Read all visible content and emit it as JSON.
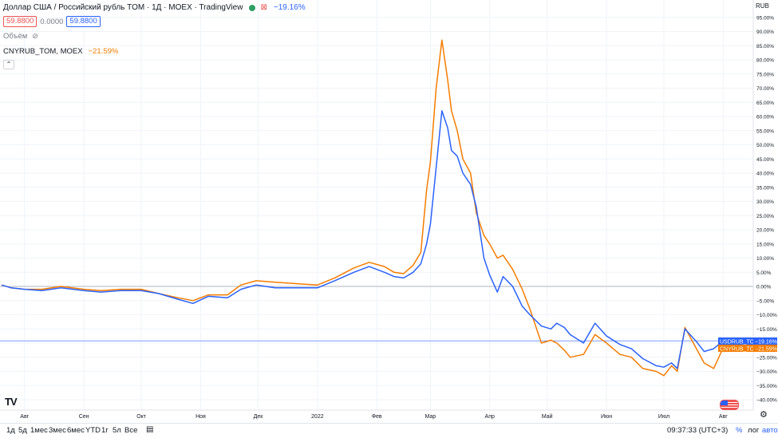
{
  "header": {
    "title": "Доллар США / Российский рубль TOM · 1Д · MOEX · TradingView",
    "change_main": "−19.16%",
    "price_bid": "59.8800",
    "spread": "0.0000",
    "price_ask": "59.8800",
    "volume_label": "Объём",
    "compare_label": "CNYRUB_TOM, MOEX",
    "compare_change": "−21.59%",
    "collapse_icon": "chevron-up-icon"
  },
  "scale": {
    "currency": "RUB",
    "ticks": [
      "95.00%",
      "90.00%",
      "85.00%",
      "80.00%",
      "75.00%",
      "70.00%",
      "65.00%",
      "60.00%",
      "55.00%",
      "50.00%",
      "45.00%",
      "40.00%",
      "35.00%",
      "30.00%",
      "25.00%",
      "20.00%",
      "15.00%",
      "10.00%",
      "5.00%",
      "0.00%",
      "−5.00%",
      "−10.00%",
      "−15.00%",
      "−20.00%",
      "−25.00%",
      "−30.00%",
      "−35.00%",
      "−40.00%"
    ],
    "tick_values": [
      95,
      90,
      85,
      80,
      75,
      70,
      65,
      60,
      55,
      50,
      45,
      40,
      35,
      30,
      25,
      20,
      15,
      10,
      5,
      0,
      -5,
      -10,
      -15,
      -20,
      -25,
      -30,
      -35,
      -40
    ]
  },
  "time_axis": {
    "labels": [
      "Авг",
      "Сен",
      "Окт",
      "Ноя",
      "Дек",
      "2022",
      "Фев",
      "Мар",
      "Апр",
      "Май",
      "Июн",
      "Июл",
      "Авг"
    ],
    "label_dates": [
      "2021-08-01",
      "2021-09-01",
      "2021-10-01",
      "2021-11-01",
      "2021-12-01",
      "2022-01-01",
      "2022-02-01",
      "2022-03-01",
      "2022-04-01",
      "2022-05-01",
      "2022-06-01",
      "2022-07-01",
      "2022-08-01"
    ]
  },
  "markers": {
    "usd_label": "USDRUB_TOM",
    "usd_value": "−19.16%",
    "cny_label": "CNYRUB_TOM",
    "cny_value": "−21.59%"
  },
  "bottom_bar": {
    "timeframes": [
      "1д",
      "5д",
      "1мес",
      "3мес",
      "6мес",
      "YTD",
      "1г",
      "5л",
      "Все"
    ],
    "date_range_icon": "calendar-icon",
    "clock": "09:37:33 (UTC+3)",
    "percent": "%",
    "log": "лог",
    "auto": "авто",
    "settings_icon": "gear-icon"
  },
  "colors": {
    "usd": "#2962ff",
    "cny": "#f57c00",
    "grid": "#f0f3fa",
    "zero_line": "#b2b5be",
    "last_line": "#2962ff"
  },
  "chart_data": {
    "type": "line",
    "x_unit": "date",
    "y_unit": "percent",
    "ylim": [
      -42,
      97
    ],
    "grid": true,
    "legend": "top-left",
    "series": [
      {
        "name": "USDRUB_TOM",
        "x": [
          "2021-07-20",
          "2021-07-25",
          "2021-08-01",
          "2021-08-10",
          "2021-08-20",
          "2021-09-01",
          "2021-09-10",
          "2021-09-20",
          "2021-10-01",
          "2021-10-10",
          "2021-10-20",
          "2021-10-28",
          "2021-11-05",
          "2021-11-15",
          "2021-11-22",
          "2021-11-30",
          "2021-12-10",
          "2021-12-20",
          "2022-01-01",
          "2022-01-10",
          "2022-01-20",
          "2022-01-28",
          "2022-02-05",
          "2022-02-10",
          "2022-02-15",
          "2022-02-20",
          "2022-02-24",
          "2022-02-27",
          "2022-03-01",
          "2022-03-04",
          "2022-03-07",
          "2022-03-10",
          "2022-03-12",
          "2022-03-15",
          "2022-03-18",
          "2022-03-22",
          "2022-03-25",
          "2022-03-29",
          "2022-04-01",
          "2022-04-05",
          "2022-04-08",
          "2022-04-13",
          "2022-04-18",
          "2022-04-22",
          "2022-04-28",
          "2022-05-03",
          "2022-05-06",
          "2022-05-10",
          "2022-05-13",
          "2022-05-20",
          "2022-05-26",
          "2022-06-01",
          "2022-06-08",
          "2022-06-14",
          "2022-06-20",
          "2022-06-27",
          "2022-07-01",
          "2022-07-05",
          "2022-07-08",
          "2022-07-12",
          "2022-07-18",
          "2022-07-22",
          "2022-07-27",
          "2022-08-01"
        ],
        "values": [
          0.5,
          -0.5,
          -1.0,
          -1.5,
          -0.5,
          -1.5,
          -2.0,
          -1.5,
          -1.5,
          -2.5,
          -4.5,
          -6.0,
          -3.5,
          -4.0,
          -1.0,
          0.5,
          -0.5,
          -0.5,
          -0.5,
          2.0,
          5.0,
          7.0,
          5.0,
          3.5,
          3.0,
          5.0,
          8.0,
          15.0,
          22.0,
          42.0,
          62.0,
          56.0,
          48.0,
          46.0,
          40.0,
          36.0,
          28.0,
          10.0,
          4.0,
          -2.0,
          3.5,
          0.0,
          -7.0,
          -10.0,
          -14.0,
          -15.0,
          -13.0,
          -14.5,
          -17.0,
          -20.0,
          -13.0,
          -17.5,
          -20.5,
          -22.0,
          -25.5,
          -28.0,
          -28.5,
          -27.0,
          -29.0,
          -15.0,
          -19.5,
          -23.0,
          -22.0,
          -19.2
        ]
      },
      {
        "name": "CNYRUB_TOM",
        "x": [
          "2021-07-20",
          "2021-07-25",
          "2021-08-01",
          "2021-08-10",
          "2021-08-20",
          "2021-09-01",
          "2021-09-10",
          "2021-09-20",
          "2021-10-01",
          "2021-10-10",
          "2021-10-20",
          "2021-10-28",
          "2021-11-05",
          "2021-11-15",
          "2021-11-22",
          "2021-11-30",
          "2021-12-10",
          "2021-12-20",
          "2022-01-01",
          "2022-01-10",
          "2022-01-20",
          "2022-01-28",
          "2022-02-05",
          "2022-02-10",
          "2022-02-15",
          "2022-02-20",
          "2022-02-24",
          "2022-02-27",
          "2022-03-01",
          "2022-03-04",
          "2022-03-07",
          "2022-03-10",
          "2022-03-12",
          "2022-03-15",
          "2022-03-18",
          "2022-03-22",
          "2022-03-25",
          "2022-03-29",
          "2022-04-01",
          "2022-04-05",
          "2022-04-08",
          "2022-04-13",
          "2022-04-18",
          "2022-04-22",
          "2022-04-28",
          "2022-05-03",
          "2022-05-06",
          "2022-05-10",
          "2022-05-13",
          "2022-05-20",
          "2022-05-26",
          "2022-06-01",
          "2022-06-08",
          "2022-06-14",
          "2022-06-20",
          "2022-06-27",
          "2022-07-01",
          "2022-07-05",
          "2022-07-08",
          "2022-07-12",
          "2022-07-18",
          "2022-07-22",
          "2022-07-27",
          "2022-08-01"
        ],
        "values": [
          0.5,
          -0.5,
          -1.0,
          -1.0,
          0.0,
          -1.0,
          -1.5,
          -1.0,
          -1.0,
          -2.5,
          -4.0,
          -5.0,
          -3.0,
          -3.0,
          0.5,
          2.0,
          1.5,
          1.0,
          0.5,
          3.0,
          6.5,
          8.5,
          7.0,
          5.0,
          4.5,
          7.5,
          12.0,
          34.0,
          44.0,
          70.0,
          87.0,
          73.0,
          62.0,
          55.0,
          45.0,
          40.0,
          26.0,
          18.0,
          15.0,
          10.0,
          11.0,
          6.0,
          -1.0,
          -8.0,
          -20.0,
          -19.0,
          -20.0,
          -22.5,
          -25.0,
          -24.0,
          -17.0,
          -20.0,
          -24.0,
          -25.0,
          -29.0,
          -30.0,
          -31.5,
          -28.0,
          -30.0,
          -14.5,
          -22.0,
          -27.0,
          -29.0,
          -21.6
        ]
      }
    ]
  }
}
